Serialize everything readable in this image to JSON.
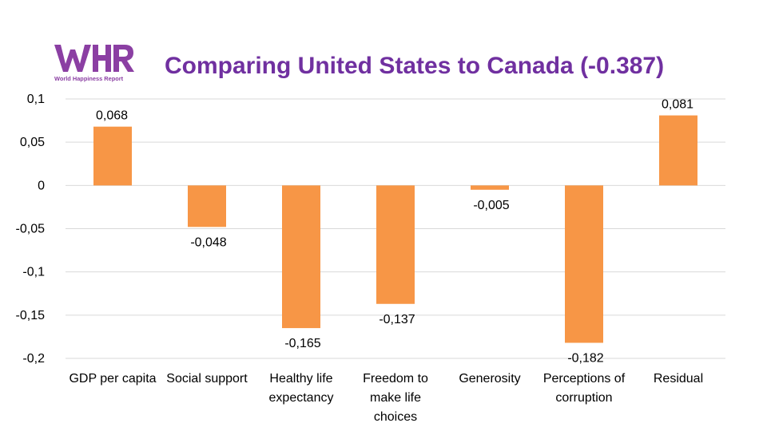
{
  "logo": {
    "mark": "WHR",
    "caption": "World Happiness Report",
    "color": "#8b3fa3"
  },
  "chart_data": {
    "type": "bar",
    "title": "Comparing United States to Canada (-0.387)",
    "categories": [
      "GDP per capita",
      "Social support",
      "Healthy life expectancy",
      "Freedom to make life choices",
      "Generosity",
      "Perceptions of corruption",
      "Residual"
    ],
    "category_lines": [
      [
        "GDP per capita"
      ],
      [
        "Social support"
      ],
      [
        "Healthy life",
        "expectancy"
      ],
      [
        "Freedom to",
        "make life",
        "choices"
      ],
      [
        "Generosity"
      ],
      [
        "Perceptions of",
        "corruption"
      ],
      [
        "Residual"
      ]
    ],
    "values": [
      0.068,
      -0.048,
      -0.165,
      -0.137,
      -0.005,
      -0.182,
      0.081
    ],
    "value_labels": [
      "0,068",
      "-0,048",
      "-0,165",
      "-0,137",
      "-0,005",
      "-0,182",
      "0,081"
    ],
    "ylim": [
      -0.2,
      0.1
    ],
    "yticks": [
      0.1,
      0.05,
      0,
      -0.05,
      -0.1,
      -0.15,
      -0.2
    ],
    "ytick_labels": [
      "0,1",
      "0,05",
      "0",
      "-0,05",
      "-0,1",
      "-0,15",
      "-0,2"
    ],
    "bar_color": "#f79646",
    "grid": true,
    "xlabel": "",
    "ylabel": ""
  }
}
